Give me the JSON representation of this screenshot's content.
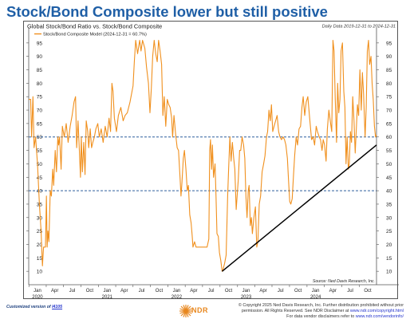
{
  "headline": "Stock/Bond Composite lower but still positive",
  "chart_data": {
    "type": "line",
    "title": "Global Stock/Bond Ratio vs. Stock/Bond Composite",
    "date_range": "Daily Data 2019-12-31 to 2024-12-31",
    "legend_label": "Stock/Bond Composite Model (2024-12-31 = 60.7%)",
    "source": "Source: Ned Davis Research, Inc.",
    "ylim": [
      5,
      100
    ],
    "yticks": [
      10,
      15,
      20,
      25,
      30,
      35,
      40,
      45,
      50,
      55,
      60,
      65,
      70,
      75,
      80,
      85,
      90,
      95
    ],
    "reference_lines": [
      60,
      40
    ],
    "colors": {
      "series": "#f0901e",
      "reference": "#2e5f9e",
      "trend": "#000000"
    },
    "x_month_labels": [
      "Jan",
      "Apr",
      "Jul",
      "Oct",
      "Jan",
      "Apr",
      "Jul",
      "Oct",
      "Jan",
      "Apr",
      "Jul",
      "Oct",
      "Jan",
      "Apr",
      "Jul",
      "Oct",
      "Jan",
      "Apr",
      "Jul",
      "Oct"
    ],
    "x_year_labels": [
      {
        "label": "2020",
        "date": "2020-01-01"
      },
      {
        "label": "2021",
        "date": "2021-01-01"
      },
      {
        "label": "2022",
        "date": "2022-01-01"
      },
      {
        "label": "2023",
        "date": "2023-01-01"
      },
      {
        "label": "2024",
        "date": "2024-01-01"
      }
    ],
    "trend_line": {
      "start": [
        "2022-10-12",
        10
      ],
      "end": [
        "2024-12-31",
        57
      ]
    },
    "series": [
      {
        "name": "Stock/Bond Composite Model",
        "points": [
          [
            "2019-12-31",
            74
          ],
          [
            "2020-01-10",
            74
          ],
          [
            "2020-01-15",
            60
          ],
          [
            "2020-01-22",
            75
          ],
          [
            "2020-01-28",
            56
          ],
          [
            "2020-02-05",
            60
          ],
          [
            "2020-02-15",
            50
          ],
          [
            "2020-02-25",
            35
          ],
          [
            "2020-03-05",
            25
          ],
          [
            "2020-03-12",
            12
          ],
          [
            "2020-03-18",
            19
          ],
          [
            "2020-03-28",
            19
          ],
          [
            "2020-04-02",
            38
          ],
          [
            "2020-04-06",
            19
          ],
          [
            "2020-04-10",
            25
          ],
          [
            "2020-04-15",
            21
          ],
          [
            "2020-04-22",
            40
          ],
          [
            "2020-04-28",
            38
          ],
          [
            "2020-05-05",
            48
          ],
          [
            "2020-05-10",
            42
          ],
          [
            "2020-05-18",
            55
          ],
          [
            "2020-05-25",
            47
          ],
          [
            "2020-06-01",
            60
          ],
          [
            "2020-06-05",
            57
          ],
          [
            "2020-06-10",
            60
          ],
          [
            "2020-06-18",
            48
          ],
          [
            "2020-06-25",
            64
          ],
          [
            "2020-07-05",
            60
          ],
          [
            "2020-07-15",
            65
          ],
          [
            "2020-07-25",
            58
          ],
          [
            "2020-08-05",
            64
          ],
          [
            "2020-08-15",
            68
          ],
          [
            "2020-08-25",
            73
          ],
          [
            "2020-09-02",
            75
          ],
          [
            "2020-09-08",
            56
          ],
          [
            "2020-09-15",
            66
          ],
          [
            "2020-09-22",
            55
          ],
          [
            "2020-09-28",
            45
          ],
          [
            "2020-10-02",
            60
          ],
          [
            "2020-10-08",
            47
          ],
          [
            "2020-10-15",
            58
          ],
          [
            "2020-10-22",
            46
          ],
          [
            "2020-10-28",
            66
          ],
          [
            "2020-11-05",
            62
          ],
          [
            "2020-11-10",
            56
          ],
          [
            "2020-11-18",
            63
          ],
          [
            "2020-11-25",
            56
          ],
          [
            "2020-12-02",
            58
          ],
          [
            "2020-12-10",
            60
          ],
          [
            "2020-12-18",
            63
          ],
          [
            "2020-12-28",
            65
          ],
          [
            "2021-01-05",
            60
          ],
          [
            "2021-01-15",
            63
          ],
          [
            "2021-01-25",
            58
          ],
          [
            "2021-02-05",
            64
          ],
          [
            "2021-02-15",
            60
          ],
          [
            "2021-02-25",
            67
          ],
          [
            "2021-03-05",
            62
          ],
          [
            "2021-03-12",
            80
          ],
          [
            "2021-03-18",
            77
          ],
          [
            "2021-03-25",
            67
          ],
          [
            "2021-04-05",
            62
          ],
          [
            "2021-04-15",
            68
          ],
          [
            "2021-04-28",
            71
          ],
          [
            "2021-05-10",
            66
          ],
          [
            "2021-05-20",
            68
          ],
          [
            "2021-06-01",
            69
          ],
          [
            "2021-06-15",
            73
          ],
          [
            "2021-07-01",
            79
          ],
          [
            "2021-07-08",
            88
          ],
          [
            "2021-07-15",
            96
          ],
          [
            "2021-07-25",
            91
          ],
          [
            "2021-08-05",
            96
          ],
          [
            "2021-08-12",
            92
          ],
          [
            "2021-08-20",
            96
          ],
          [
            "2021-09-01",
            93
          ],
          [
            "2021-09-10",
            86
          ],
          [
            "2021-09-20",
            80
          ],
          [
            "2021-09-28",
            69
          ],
          [
            "2021-10-05",
            78
          ],
          [
            "2021-10-12",
            90
          ],
          [
            "2021-10-20",
            96
          ],
          [
            "2021-10-28",
            91
          ],
          [
            "2021-11-05",
            88
          ],
          [
            "2021-11-12",
            96
          ],
          [
            "2021-11-20",
            92
          ],
          [
            "2021-11-28",
            87
          ],
          [
            "2021-12-05",
            68
          ],
          [
            "2021-12-12",
            75
          ],
          [
            "2021-12-20",
            64
          ],
          [
            "2021-12-28",
            74
          ],
          [
            "2022-01-05",
            72
          ],
          [
            "2022-01-12",
            71
          ],
          [
            "2022-01-20",
            67
          ],
          [
            "2022-01-25",
            60
          ],
          [
            "2022-02-01",
            68
          ],
          [
            "2022-02-10",
            61
          ],
          [
            "2022-02-18",
            56
          ],
          [
            "2022-02-25",
            55
          ],
          [
            "2022-03-05",
            45
          ],
          [
            "2022-03-10",
            38
          ],
          [
            "2022-03-15",
            43
          ],
          [
            "2022-03-22",
            52
          ],
          [
            "2022-03-28",
            55
          ],
          [
            "2022-04-05",
            48
          ],
          [
            "2022-04-12",
            40
          ],
          [
            "2022-04-18",
            42
          ],
          [
            "2022-04-25",
            31
          ],
          [
            "2022-05-02",
            28
          ],
          [
            "2022-05-08",
            23
          ],
          [
            "2022-05-12",
            19
          ],
          [
            "2022-05-20",
            21
          ],
          [
            "2022-05-28",
            19
          ],
          [
            "2022-06-05",
            19
          ],
          [
            "2022-06-15",
            19
          ],
          [
            "2022-06-25",
            19
          ],
          [
            "2022-07-05",
            19
          ],
          [
            "2022-07-15",
            19
          ],
          [
            "2022-07-25",
            19
          ],
          [
            "2022-08-03",
            22
          ],
          [
            "2022-08-08",
            55
          ],
          [
            "2022-08-12",
            59
          ],
          [
            "2022-08-18",
            48
          ],
          [
            "2022-08-22",
            57
          ],
          [
            "2022-08-28",
            45
          ],
          [
            "2022-09-05",
            50
          ],
          [
            "2022-09-10",
            38
          ],
          [
            "2022-09-15",
            24
          ],
          [
            "2022-09-22",
            23
          ],
          [
            "2022-09-28",
            17
          ],
          [
            "2022-10-05",
            14
          ],
          [
            "2022-10-12",
            10
          ],
          [
            "2022-10-18",
            11
          ],
          [
            "2022-10-25",
            13
          ],
          [
            "2022-11-02",
            16
          ],
          [
            "2022-11-10",
            38
          ],
          [
            "2022-11-15",
            48
          ],
          [
            "2022-11-22",
            60
          ],
          [
            "2022-11-28",
            51
          ],
          [
            "2022-12-05",
            58
          ],
          [
            "2022-12-12",
            52
          ],
          [
            "2022-12-18",
            48
          ],
          [
            "2022-12-25",
            33
          ],
          [
            "2023-01-05",
            44
          ],
          [
            "2023-01-12",
            55
          ],
          [
            "2023-01-18",
            55
          ],
          [
            "2023-01-25",
            60
          ],
          [
            "2023-02-02",
            57
          ],
          [
            "2023-02-08",
            52
          ],
          [
            "2023-02-14",
            38
          ],
          [
            "2023-02-20",
            30
          ],
          [
            "2023-02-26",
            40
          ],
          [
            "2023-03-03",
            42
          ],
          [
            "2023-03-09",
            27
          ],
          [
            "2023-03-15",
            30
          ],
          [
            "2023-03-20",
            24
          ],
          [
            "2023-03-28",
            30
          ],
          [
            "2023-04-05",
            34
          ],
          [
            "2023-04-12",
            19
          ],
          [
            "2023-04-18",
            21
          ],
          [
            "2023-04-25",
            35
          ],
          [
            "2023-05-02",
            38
          ],
          [
            "2023-05-10",
            47
          ],
          [
            "2023-05-18",
            50
          ],
          [
            "2023-05-25",
            53
          ],
          [
            "2023-06-02",
            60
          ],
          [
            "2023-06-08",
            62
          ],
          [
            "2023-06-15",
            70
          ],
          [
            "2023-06-22",
            66
          ],
          [
            "2023-06-28",
            72
          ],
          [
            "2023-07-05",
            62
          ],
          [
            "2023-07-12",
            64
          ],
          [
            "2023-07-20",
            66
          ],
          [
            "2023-07-28",
            68
          ],
          [
            "2023-08-05",
            62
          ],
          [
            "2023-08-12",
            60
          ],
          [
            "2023-08-20",
            59
          ],
          [
            "2023-08-28",
            60
          ],
          [
            "2023-09-05",
            59
          ],
          [
            "2023-09-12",
            57
          ],
          [
            "2023-09-20",
            52
          ],
          [
            "2023-09-26",
            44
          ],
          [
            "2023-10-02",
            36
          ],
          [
            "2023-10-08",
            35
          ],
          [
            "2023-10-15",
            37
          ],
          [
            "2023-10-22",
            46
          ],
          [
            "2023-10-28",
            53
          ],
          [
            "2023-11-05",
            60
          ],
          [
            "2023-11-12",
            57
          ],
          [
            "2023-11-20",
            63
          ],
          [
            "2023-11-28",
            64
          ],
          [
            "2023-12-05",
            71
          ],
          [
            "2023-12-12",
            75
          ],
          [
            "2023-12-20",
            68
          ],
          [
            "2023-12-28",
            73
          ],
          [
            "2024-01-05",
            75
          ],
          [
            "2024-01-15",
            67
          ],
          [
            "2024-01-25",
            59
          ],
          [
            "2024-02-02",
            60
          ],
          [
            "2024-02-10",
            57
          ],
          [
            "2024-02-18",
            64
          ],
          [
            "2024-02-25",
            62
          ],
          [
            "2024-03-05",
            60
          ],
          [
            "2024-03-12",
            59
          ],
          [
            "2024-03-20",
            55
          ],
          [
            "2024-03-26",
            59
          ],
          [
            "2024-04-02",
            57
          ],
          [
            "2024-04-10",
            51
          ],
          [
            "2024-04-17",
            63
          ],
          [
            "2024-04-25",
            70
          ],
          [
            "2024-05-02",
            66
          ],
          [
            "2024-05-10",
            62
          ],
          [
            "2024-05-16",
            96
          ],
          [
            "2024-05-22",
            92
          ],
          [
            "2024-05-28",
            75
          ],
          [
            "2024-06-04",
            58
          ],
          [
            "2024-06-10",
            80
          ],
          [
            "2024-06-16",
            69
          ],
          [
            "2024-06-22",
            74
          ],
          [
            "2024-06-28",
            92
          ],
          [
            "2024-07-05",
            95
          ],
          [
            "2024-07-12",
            77
          ],
          [
            "2024-07-18",
            71
          ],
          [
            "2024-07-24",
            50
          ],
          [
            "2024-07-30",
            60
          ],
          [
            "2024-08-05",
            48
          ],
          [
            "2024-08-10",
            50
          ],
          [
            "2024-08-16",
            62
          ],
          [
            "2024-08-22",
            58
          ],
          [
            "2024-08-28",
            75
          ],
          [
            "2024-09-04",
            66
          ],
          [
            "2024-09-10",
            54
          ],
          [
            "2024-09-16",
            63
          ],
          [
            "2024-09-22",
            72
          ],
          [
            "2024-09-28",
            68
          ],
          [
            "2024-10-05",
            85
          ],
          [
            "2024-10-12",
            70
          ],
          [
            "2024-10-18",
            84
          ],
          [
            "2024-10-24",
            76
          ],
          [
            "2024-11-01",
            60
          ],
          [
            "2024-11-07",
            71
          ],
          [
            "2024-11-13",
            92
          ],
          [
            "2024-11-19",
            96
          ],
          [
            "2024-11-25",
            87
          ],
          [
            "2024-12-02",
            90
          ],
          [
            "2024-12-08",
            80
          ],
          [
            "2024-12-14",
            74
          ],
          [
            "2024-12-20",
            64
          ],
          [
            "2024-12-26",
            60
          ],
          [
            "2024-12-31",
            60.7
          ]
        ]
      }
    ]
  },
  "footer": {
    "custom_version_prefix": "Customized version of ",
    "custom_version_link": "I4105",
    "logo_text": "NDR",
    "copyright_line1": "© Copyright 2025 Ned Davis Research, Inc. Further distribution prohibited without prior",
    "copyright_line2_prefix": "permission. All Rights Reserved. See NDR Disclaimer at ",
    "copyright_line2_link": "www.ndr.com/copyright.html",
    "copyright_line3_prefix": "For data vendor disclaimers refer to ",
    "copyright_line3_link": "www.ndr.com/vendorinfo/"
  }
}
